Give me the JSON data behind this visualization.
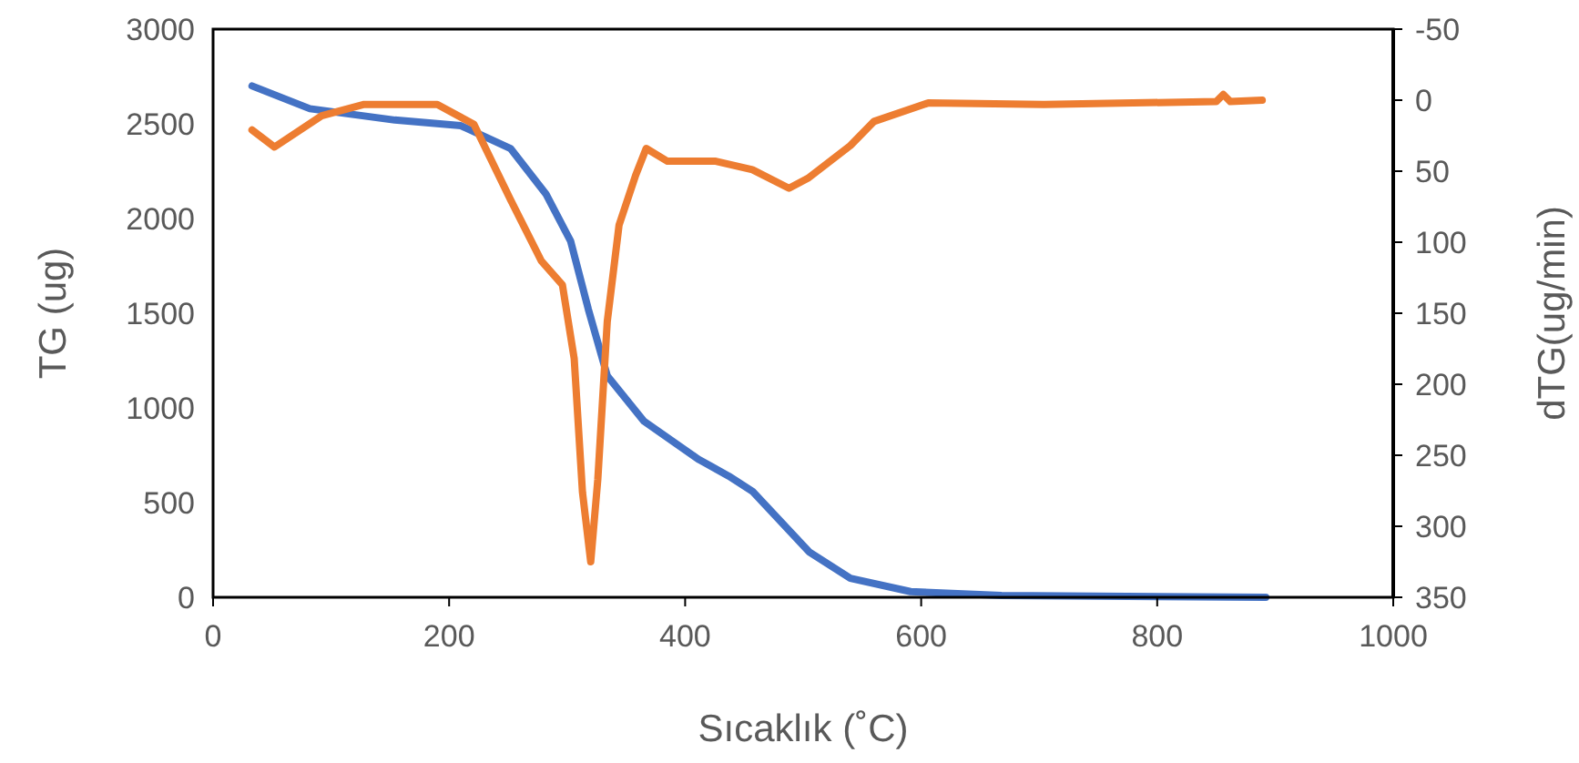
{
  "chart_data": {
    "type": "line",
    "xlabel": "Sıcaklık (˚C)",
    "ylabel": "TG (ug)",
    "y2label": "dTG(ug/min)",
    "xlim": [
      0,
      1000
    ],
    "xticks": [
      0,
      200,
      400,
      600,
      800,
      1000
    ],
    "ylim": [
      0,
      3000
    ],
    "yticks": [
      0,
      500,
      1000,
      1500,
      2000,
      2500,
      3000
    ],
    "y2lim": [
      350,
      -50
    ],
    "y2ticks": [
      -50,
      0,
      50,
      100,
      150,
      200,
      250,
      300,
      350
    ],
    "grid": false,
    "marker": "none",
    "line_style": "solid",
    "series": [
      {
        "color": "#4472c4",
        "x": [
          33,
          82,
          154,
          210,
          252,
          282,
          303,
          318,
          334,
          365,
          411,
          437,
          457,
          505,
          540,
          591,
          668,
          892
        ],
        "values": [
          2700,
          2580,
          2520,
          2490,
          2370,
          2130,
          1880,
          1520,
          1170,
          930,
          730,
          640,
          560,
          240,
          100,
          30,
          10,
          0
        ]
      },
      {
        "color": "#ed7d31",
        "axis": "y2",
        "x": [
          33,
          52,
          92,
          128,
          190,
          221,
          252,
          278,
          296,
          306,
          313,
          320,
          326,
          334,
          344,
          358,
          367,
          385,
          426,
          457,
          488,
          504,
          540,
          560,
          606,
          704,
          850,
          856,
          862,
          889
        ],
        "values": [
          21,
          33,
          11,
          3,
          3,
          17,
          70,
          113,
          130,
          182,
          276,
          325,
          267,
          156,
          88,
          53,
          34,
          43,
          43,
          49,
          62,
          55,
          32,
          15,
          2,
          3,
          1,
          -4,
          1,
          0
        ]
      }
    ]
  }
}
